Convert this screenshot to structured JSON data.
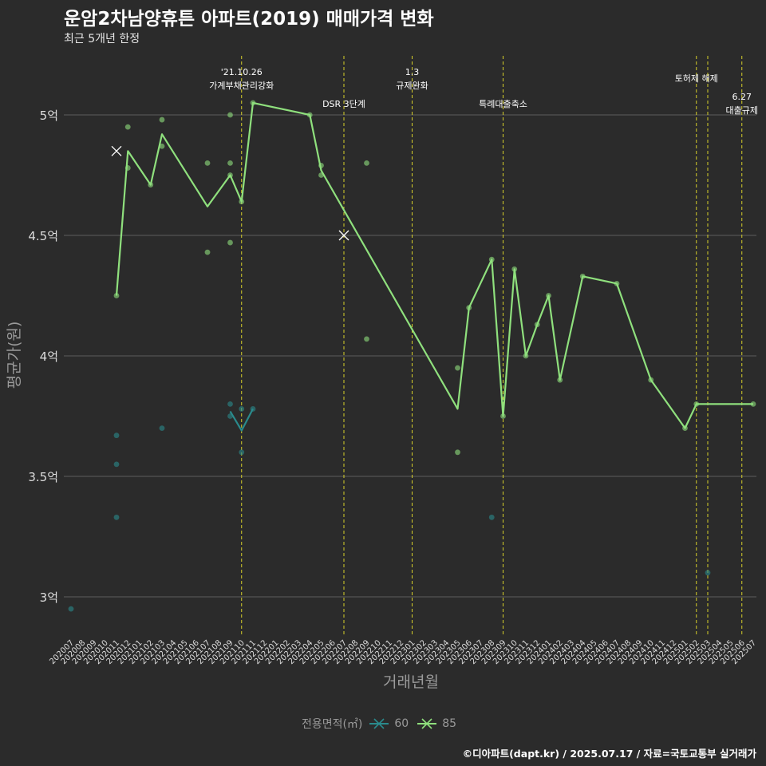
{
  "chart_data": {
    "type": "line",
    "title": "운암2차남양휴튼 아파트(2019) 매매가격 변화",
    "subtitle": "최근 5개년 한정",
    "caption": "©디아파트(dapt.kr) / 2025.07.17 / 자료=국토교통부 실거래가",
    "xlabel": "거래년월",
    "ylabel": "평균가(원)",
    "ylim": [
      2.8,
      5.25
    ],
    "yticks": [
      {
        "value": 3.0,
        "label": "3억"
      },
      {
        "value": 3.5,
        "label": "3.5억"
      },
      {
        "value": 4.0,
        "label": "4억"
      },
      {
        "value": 4.5,
        "label": "4.5억"
      },
      {
        "value": 5.0,
        "label": "5억"
      }
    ],
    "categories": [
      "202007",
      "202008",
      "202009",
      "202010",
      "202011",
      "202012",
      "202101",
      "202102",
      "202103",
      "202104",
      "202105",
      "202106",
      "202107",
      "202108",
      "202109",
      "202110",
      "202111",
      "202112",
      "202201",
      "202202",
      "202203",
      "202204",
      "202205",
      "202206",
      "202207",
      "202208",
      "202209",
      "202210",
      "202211",
      "202212",
      "202301",
      "202302",
      "202303",
      "202304",
      "202305",
      "202306",
      "202307",
      "202308",
      "202309",
      "202310",
      "202311",
      "202312",
      "202401",
      "202402",
      "202403",
      "202404",
      "202405",
      "202406",
      "202407",
      "202408",
      "202409",
      "202410",
      "202411",
      "202412",
      "202501",
      "202502",
      "202503",
      "202504",
      "202505",
      "202506",
      "202507"
    ],
    "legend": {
      "title": "전용면적(㎡)",
      "position": "bottom",
      "entries": [
        {
          "label": "60",
          "color": "#2a8a8c"
        },
        {
          "label": "85",
          "color": "#8fe07d"
        }
      ]
    },
    "series": [
      {
        "name": "60",
        "color": "#2a8a8c",
        "line": [
          [
            "202109",
            3.77
          ],
          [
            "202110",
            3.69
          ],
          [
            "202111",
            3.78
          ]
        ],
        "points": [
          [
            "202007",
            2.95
          ],
          [
            "202011",
            3.67
          ],
          [
            "202011",
            3.55
          ],
          [
            "202011",
            3.33
          ],
          [
            "202103",
            3.7
          ],
          [
            "202109",
            3.8
          ],
          [
            "202109",
            3.75
          ],
          [
            "202110",
            3.78
          ],
          [
            "202110",
            3.6
          ],
          [
            "202111",
            3.78
          ],
          [
            "202308",
            3.33
          ],
          [
            "202503",
            3.1
          ]
        ]
      },
      {
        "name": "85",
        "color": "#8fe07d",
        "line": [
          [
            "202011",
            4.25
          ],
          [
            "202012",
            4.85
          ],
          [
            "202102",
            4.71
          ],
          [
            "202103",
            4.92
          ],
          [
            "202107",
            4.62
          ],
          [
            "202109",
            4.75
          ],
          [
            "202110",
            4.64
          ],
          [
            "202111",
            5.05
          ],
          [
            "202204",
            5.0
          ],
          [
            "202205",
            4.77
          ],
          [
            "202305",
            3.78
          ],
          [
            "202306",
            4.2
          ],
          [
            "202308",
            4.4
          ],
          [
            "202309",
            3.75
          ],
          [
            "202310",
            4.36
          ],
          [
            "202311",
            4.0
          ],
          [
            "202312",
            4.13
          ],
          [
            "202401",
            4.25
          ],
          [
            "202402",
            3.9
          ],
          [
            "202404",
            4.33
          ],
          [
            "202407",
            4.3
          ],
          [
            "202410",
            3.9
          ],
          [
            "202501",
            3.7
          ],
          [
            "202502",
            3.8
          ],
          [
            "202507",
            3.8
          ]
        ],
        "points": [
          [
            "202011",
            4.25
          ],
          [
            "202012",
            4.95
          ],
          [
            "202012",
            4.78
          ],
          [
            "202102",
            4.71
          ],
          [
            "202103",
            4.98
          ],
          [
            "202103",
            4.87
          ],
          [
            "202107",
            4.8
          ],
          [
            "202107",
            4.43
          ],
          [
            "202109",
            5.0
          ],
          [
            "202109",
            4.8
          ],
          [
            "202109",
            4.75
          ],
          [
            "202109",
            4.47
          ],
          [
            "202110",
            4.64
          ],
          [
            "202111",
            5.05
          ],
          [
            "202204",
            5.0
          ],
          [
            "202205",
            4.79
          ],
          [
            "202205",
            4.75
          ],
          [
            "202209",
            4.8
          ],
          [
            "202209",
            4.07
          ],
          [
            "202305",
            3.95
          ],
          [
            "202305",
            3.6
          ],
          [
            "202306",
            4.2
          ],
          [
            "202308",
            4.4
          ],
          [
            "202309",
            3.75
          ],
          [
            "202310",
            4.36
          ],
          [
            "202311",
            4.0
          ],
          [
            "202312",
            4.13
          ],
          [
            "202401",
            4.25
          ],
          [
            "202402",
            3.9
          ],
          [
            "202404",
            4.33
          ],
          [
            "202407",
            4.3
          ],
          [
            "202410",
            3.9
          ],
          [
            "202501",
            3.7
          ],
          [
            "202502",
            3.8
          ],
          [
            "202507",
            3.8
          ]
        ],
        "cross_marks": [
          [
            "202011",
            4.85
          ],
          [
            "202207",
            4.5
          ]
        ]
      }
    ],
    "annotations": [
      {
        "x": "202110",
        "lines": [
          "'21.10.26",
          "가계부채관리강화"
        ],
        "row": 1
      },
      {
        "x": "202207",
        "lines": [
          "DSR 3단계"
        ],
        "row": 3
      },
      {
        "x": "202301",
        "lines": [
          "1.3",
          "규제완화"
        ],
        "row": 1
      },
      {
        "x": "202309",
        "lines": [
          "특례대출축소"
        ],
        "row": 3
      },
      {
        "x": "202502",
        "lines": [
          "토허제 해제"
        ],
        "row": 2
      },
      {
        "x": "202503",
        "lines": [],
        "row": 0
      },
      {
        "x": "202506",
        "lines": [
          "6.27",
          "대출규제"
        ],
        "row": 4
      }
    ],
    "colors": {
      "background": "#2b2b2b",
      "grid": "#5c5c5c",
      "vline": "#d7d02a",
      "axis_text": "#dcdcdc"
    }
  }
}
